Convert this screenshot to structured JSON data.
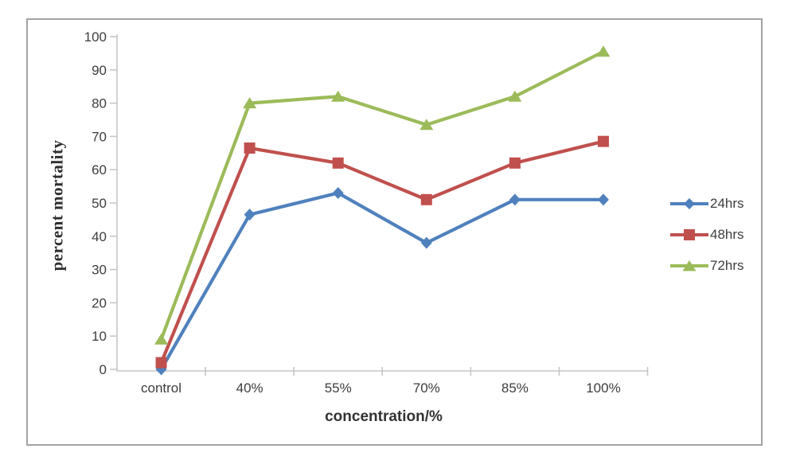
{
  "figure": {
    "background_color": "#ffffff",
    "frame_border_color": "#a3a3a3",
    "axis_line_color": "#c6c6c6",
    "text_color": "#3d3d3d"
  },
  "chart_data": {
    "type": "line",
    "title": "",
    "xlabel": "concentration/%",
    "ylabel": "percent mortality",
    "categories": [
      "control",
      "40%",
      "55%",
      "70%",
      "85%",
      "100%"
    ],
    "series": [
      {
        "name": "24hrs",
        "color": "#4F81BD",
        "marker": "diamond",
        "values": [
          0,
          46.5,
          53,
          38,
          51,
          51
        ]
      },
      {
        "name": "48hrs",
        "color": "#C0504D",
        "marker": "square",
        "values": [
          2,
          66.5,
          62,
          51,
          62,
          68.5
        ]
      },
      {
        "name": "72hrs",
        "color": "#9BBB59",
        "marker": "triangle",
        "values": [
          9,
          80,
          82,
          73.5,
          82,
          95.5
        ]
      }
    ],
    "ylim": [
      0,
      100
    ],
    "yticks": [
      0,
      10,
      20,
      30,
      40,
      50,
      60,
      70,
      80,
      90,
      100
    ],
    "grid": false,
    "legend_position": "right-middle"
  }
}
